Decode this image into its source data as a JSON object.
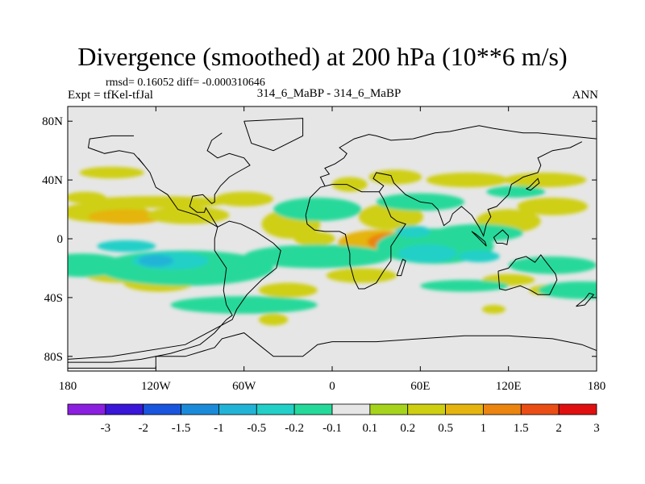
{
  "title": "Divergence (smoothed) at 200 hPa (10**6 m/s)",
  "rmsd_line": "rmsd= 0.16052 diff= -0.000310646",
  "left_label": "Expt = tfKel-tfJal",
  "center_label": "314_6_MaBP - 314_6_MaBP",
  "right_label": "ANN",
  "colors": {
    "map_background": "#e6e6e6",
    "coast": "#000000"
  },
  "chart_data": {
    "type": "heatmap",
    "projection": "cylindrical-equidistant",
    "xlim": [
      -180,
      180
    ],
    "ylim": [
      -90,
      90
    ],
    "x_ticks": [
      {
        "value": -180,
        "label": "180"
      },
      {
        "value": -120,
        "label": "120W"
      },
      {
        "value": -60,
        "label": "60W"
      },
      {
        "value": 0,
        "label": "0"
      },
      {
        "value": 60,
        "label": "60E"
      },
      {
        "value": 120,
        "label": "120E"
      },
      {
        "value": 180,
        "label": "180"
      }
    ],
    "y_ticks": [
      {
        "value": 80,
        "label": "80N"
      },
      {
        "value": 40,
        "label": "40N"
      },
      {
        "value": 0,
        "label": "0"
      },
      {
        "value": -40,
        "label": "40S"
      },
      {
        "value": -80,
        "label": "80S"
      }
    ],
    "colorbar": {
      "labels": [
        "-3",
        "-2",
        "-1.5",
        "-1",
        "-0.5",
        "-0.2",
        "-0.1",
        "0.1",
        "0.2",
        "0.5",
        "1",
        "1.5",
        "2",
        "3"
      ],
      "colors": [
        "#8b1fe0",
        "#3a16d8",
        "#1a55dd",
        "#1b8ad9",
        "#22b4d6",
        "#22d0c8",
        "#25d99a",
        "#e6e6e6",
        "#a6d41c",
        "#cfcf12",
        "#e5b40f",
        "#eb8510",
        "#ea4e15",
        "#e01010"
      ]
    },
    "regions": [
      {
        "lon": -155,
        "lat": 18,
        "w": 30,
        "h": 7,
        "level": 0.2
      },
      {
        "lon": -140,
        "lat": 15,
        "w": 26,
        "h": 5,
        "level": 0.5
      },
      {
        "lon": -98,
        "lat": 16,
        "w": 28,
        "h": 6,
        "level": 0.2
      },
      {
        "lon": -168,
        "lat": 28,
        "w": 14,
        "h": 4,
        "level": 0.2
      },
      {
        "lon": -120,
        "lat": 25,
        "w": 50,
        "h": 4,
        "level": 0.2
      },
      {
        "lon": -60,
        "lat": 27,
        "w": 20,
        "h": 5,
        "level": 0.2
      },
      {
        "lon": -150,
        "lat": 45,
        "w": 22,
        "h": 4,
        "level": 0.2
      },
      {
        "lon": -28,
        "lat": 10,
        "w": 20,
        "h": 10,
        "level": 0.2
      },
      {
        "lon": -12,
        "lat": 0,
        "w": 14,
        "h": 5,
        "level": 0.2
      },
      {
        "lon": 12,
        "lat": 37,
        "w": 12,
        "h": 5,
        "level": 0.2
      },
      {
        "lon": 43,
        "lat": 42,
        "w": 18,
        "h": 5,
        "level": 0.2
      },
      {
        "lon": 92,
        "lat": 40,
        "w": 28,
        "h": 5,
        "level": 0.2
      },
      {
        "lon": 145,
        "lat": 40,
        "w": 28,
        "h": 5,
        "level": 0.2
      },
      {
        "lon": 150,
        "lat": 22,
        "w": 24,
        "h": 6,
        "level": 0.2
      },
      {
        "lon": 120,
        "lat": 12,
        "w": 22,
        "h": 8,
        "level": 0.2
      },
      {
        "lon": 40,
        "lat": 15,
        "w": 22,
        "h": 9,
        "level": 0.2
      },
      {
        "lon": 30,
        "lat": -3,
        "w": 26,
        "h": 9,
        "level": 0.5
      },
      {
        "lon": 40,
        "lat": -2,
        "w": 16,
        "h": 6,
        "level": 1
      },
      {
        "lon": -140,
        "lat": -25,
        "w": 28,
        "h": 5,
        "level": 0.2
      },
      {
        "lon": -118,
        "lat": -30,
        "w": 24,
        "h": 6,
        "level": 0.2
      },
      {
        "lon": -30,
        "lat": -35,
        "w": 20,
        "h": 5,
        "level": 0.2
      },
      {
        "lon": -40,
        "lat": -55,
        "w": 10,
        "h": 4,
        "level": 0.2
      },
      {
        "lon": 20,
        "lat": -25,
        "w": 24,
        "h": 5,
        "level": 0.2
      },
      {
        "lon": 120,
        "lat": -28,
        "w": 18,
        "h": 4,
        "level": 0.2
      },
      {
        "lon": 150,
        "lat": -35,
        "w": 16,
        "h": 4,
        "level": 0.2
      },
      {
        "lon": 110,
        "lat": -48,
        "w": 8,
        "h": 3,
        "level": 0.2
      },
      {
        "lon": -100,
        "lat": -20,
        "w": 60,
        "h": 12,
        "level": -0.1
      },
      {
        "lon": -170,
        "lat": -18,
        "w": 30,
        "h": 8,
        "level": -0.1
      },
      {
        "lon": -60,
        "lat": -45,
        "w": 50,
        "h": 6,
        "level": -0.1
      },
      {
        "lon": 170,
        "lat": -35,
        "w": 30,
        "h": 6,
        "level": -0.1
      },
      {
        "lon": 70,
        "lat": -5,
        "w": 40,
        "h": 12,
        "level": -0.1
      },
      {
        "lon": 100,
        "lat": 4,
        "w": 30,
        "h": 6,
        "level": -0.1
      },
      {
        "lon": -10,
        "lat": -12,
        "w": 50,
        "h": 8,
        "level": -0.1
      },
      {
        "lon": -10,
        "lat": 20,
        "w": 30,
        "h": 8,
        "level": -0.1
      },
      {
        "lon": 60,
        "lat": 25,
        "w": 30,
        "h": 6,
        "level": -0.1
      },
      {
        "lon": 90,
        "lat": -32,
        "w": 30,
        "h": 4,
        "level": -0.1
      },
      {
        "lon": 150,
        "lat": -18,
        "w": 30,
        "h": 6,
        "level": -0.1
      },
      {
        "lon": 125,
        "lat": 32,
        "w": 20,
        "h": 4,
        "level": -0.1
      },
      {
        "lon": -110,
        "lat": -15,
        "w": 26,
        "h": 6,
        "level": -0.2
      },
      {
        "lon": -140,
        "lat": -5,
        "w": 20,
        "h": 4,
        "level": -0.2
      },
      {
        "lon": 65,
        "lat": -10,
        "w": 20,
        "h": 6,
        "level": -0.2
      },
      {
        "lon": 100,
        "lat": -12,
        "w": 14,
        "h": 4,
        "level": -0.2
      },
      {
        "lon": -120,
        "lat": -15,
        "w": 12,
        "h": 4,
        "level": -0.5
      },
      {
        "lon": 55,
        "lat": 5,
        "w": 12,
        "h": 4,
        "level": -0.2
      }
    ],
    "coastlines": [
      [
        [
          -180,
          -88
        ],
        [
          -120,
          -88
        ],
        [
          -120,
          -80
        ],
        [
          -100,
          -80
        ],
        [
          -80,
          -74
        ],
        [
          -75,
          -68
        ],
        [
          -60,
          -64
        ],
        [
          -50,
          -72
        ],
        [
          -40,
          -80
        ],
        [
          -20,
          -80
        ],
        [
          -10,
          -72
        ],
        [
          0,
          -70
        ],
        [
          30,
          -70
        ],
        [
          60,
          -68
        ],
        [
          90,
          -66
        ],
        [
          120,
          -66
        ],
        [
          150,
          -68
        ],
        [
          170,
          -72
        ],
        [
          180,
          -76
        ]
      ],
      [
        [
          -180,
          -84
        ],
        [
          -150,
          -84
        ],
        [
          -130,
          -82
        ],
        [
          -110,
          -78
        ],
        [
          -90,
          -72
        ],
        [
          -80,
          -64
        ],
        [
          -72,
          -55
        ],
        [
          -68,
          -52
        ],
        [
          -72,
          -45
        ],
        [
          -74,
          -35
        ],
        [
          -72,
          -20
        ],
        [
          -80,
          -8
        ],
        [
          -80,
          0
        ],
        [
          -78,
          8
        ],
        [
          -70,
          12
        ],
        [
          -62,
          10
        ],
        [
          -52,
          5
        ],
        [
          -40,
          -3
        ],
        [
          -35,
          -8
        ],
        [
          -38,
          -20
        ],
        [
          -48,
          -28
        ],
        [
          -58,
          -38
        ],
        [
          -65,
          -48
        ],
        [
          -68,
          -55
        ],
        [
          -100,
          -72
        ],
        [
          -150,
          -80
        ],
        [
          -180,
          -82
        ]
      ],
      [
        [
          -78,
          8
        ],
        [
          -85,
          12
        ],
        [
          -92,
          16
        ],
        [
          -105,
          20
        ],
        [
          -112,
          30
        ],
        [
          -120,
          35
        ],
        [
          -124,
          45
        ],
        [
          -128,
          50
        ],
        [
          -132,
          55
        ]
      ],
      [
        [
          -18,
          16
        ],
        [
          -15,
          28
        ],
        [
          -8,
          35
        ],
        [
          0,
          37
        ],
        [
          10,
          37
        ],
        [
          20,
          32
        ],
        [
          32,
          32
        ],
        [
          35,
          36
        ],
        [
          28,
          41
        ],
        [
          30,
          45
        ],
        [
          40,
          43
        ],
        [
          42,
          38
        ],
        [
          50,
          30
        ],
        [
          56,
          27
        ],
        [
          60,
          25
        ],
        [
          68,
          24
        ],
        [
          72,
          20
        ],
        [
          76,
          9
        ],
        [
          80,
          12
        ],
        [
          82,
          17
        ],
        [
          88,
          22
        ],
        [
          95,
          16
        ],
        [
          100,
          8
        ],
        [
          103,
          2
        ],
        [
          105,
          10
        ],
        [
          108,
          15
        ],
        [
          106,
          20
        ],
        [
          112,
          22
        ],
        [
          120,
          30
        ],
        [
          122,
          37
        ],
        [
          127,
          40
        ],
        [
          130,
          42
        ],
        [
          140,
          45
        ],
        [
          142,
          50
        ],
        [
          140,
          55
        ],
        [
          150,
          60
        ],
        [
          162,
          62
        ],
        [
          170,
          66
        ]
      ],
      [
        [
          -18,
          16
        ],
        [
          -17,
          10
        ],
        [
          -12,
          6
        ],
        [
          -5,
          5
        ],
        [
          5,
          5
        ],
        [
          9,
          3
        ],
        [
          10,
          -2
        ],
        [
          12,
          -10
        ],
        [
          12,
          -17
        ],
        [
          15,
          -28
        ],
        [
          18,
          -34
        ],
        [
          22,
          -34
        ],
        [
          30,
          -30
        ],
        [
          35,
          -22
        ],
        [
          40,
          -15
        ],
        [
          40,
          -5
        ],
        [
          50,
          10
        ],
        [
          44,
          12
        ],
        [
          40,
          15
        ],
        [
          35,
          27
        ],
        [
          32,
          32
        ]
      ],
      [
        [
          -5,
          36
        ],
        [
          -8,
          42
        ],
        [
          -2,
          44
        ],
        [
          -5,
          48
        ],
        [
          2,
          51
        ],
        [
          8,
          55
        ],
        [
          10,
          58
        ],
        [
          5,
          62
        ],
        [
          15,
          68
        ],
        [
          25,
          71
        ],
        [
          30,
          70
        ],
        [
          40,
          67
        ],
        [
          55,
          68
        ],
        [
          70,
          72
        ],
        [
          80,
          73
        ],
        [
          90,
          75
        ],
        [
          100,
          77
        ],
        [
          110,
          75
        ],
        [
          130,
          72
        ],
        [
          140,
          72
        ],
        [
          160,
          70
        ],
        [
          180,
          68
        ]
      ],
      [
        [
          113,
          -22
        ],
        [
          114,
          -34
        ],
        [
          118,
          -35
        ],
        [
          128,
          -32
        ],
        [
          135,
          -35
        ],
        [
          140,
          -38
        ],
        [
          148,
          -38
        ],
        [
          153,
          -28
        ],
        [
          152,
          -24
        ],
        [
          145,
          -15
        ],
        [
          142,
          -11
        ],
        [
          138,
          -16
        ],
        [
          132,
          -12
        ],
        [
          125,
          -14
        ],
        [
          120,
          -20
        ],
        [
          113,
          -22
        ]
      ],
      [
        [
          44,
          -25
        ],
        [
          48,
          -14
        ],
        [
          50,
          -15
        ],
        [
          47,
          -25
        ],
        [
          44,
          -25
        ]
      ],
      [
        [
          166,
          -46
        ],
        [
          172,
          -41
        ],
        [
          175,
          -37
        ],
        [
          178,
          -38
        ],
        [
          172,
          -45
        ],
        [
          166,
          -46
        ]
      ],
      [
        [
          95,
          5
        ],
        [
          105,
          -5
        ],
        [
          104,
          -2
        ],
        [
          98,
          3
        ],
        [
          95,
          5
        ]
      ],
      [
        [
          120,
          2
        ],
        [
          119,
          -4
        ],
        [
          116,
          -3
        ],
        [
          112,
          -3
        ],
        [
          110,
          1
        ],
        [
          116,
          6
        ],
        [
          120,
          2
        ]
      ],
      [
        [
          132,
          34
        ],
        [
          134,
          35
        ],
        [
          140,
          41
        ],
        [
          141,
          38
        ],
        [
          135,
          33
        ],
        [
          132,
          34
        ]
      ],
      [
        [
          -135,
          70
        ],
        [
          -150,
          70
        ],
        [
          -165,
          68
        ],
        [
          -166,
          62
        ],
        [
          -155,
          58
        ],
        [
          -145,
          60
        ],
        [
          -135,
          58
        ],
        [
          -128,
          50
        ]
      ],
      [
        [
          -75,
          72
        ],
        [
          -82,
          67
        ],
        [
          -85,
          60
        ],
        [
          -78,
          55
        ],
        [
          -70,
          58
        ],
        [
          -60,
          55
        ],
        [
          -56,
          50
        ],
        [
          -65,
          45
        ],
        [
          -70,
          42
        ],
        [
          -76,
          36
        ],
        [
          -80,
          30
        ],
        [
          -80,
          25
        ],
        [
          -82,
          24
        ],
        [
          -88,
          30
        ],
        [
          -95,
          29
        ],
        [
          -97,
          22
        ],
        [
          -92,
          18
        ],
        [
          -87,
          18
        ],
        [
          -86,
          21
        ],
        [
          -78,
          8
        ]
      ],
      [
        [
          -60,
          80
        ],
        [
          -20,
          82
        ],
        [
          -20,
          70
        ],
        [
          -40,
          60
        ],
        [
          -55,
          65
        ],
        [
          -60,
          80
        ]
      ]
    ]
  }
}
